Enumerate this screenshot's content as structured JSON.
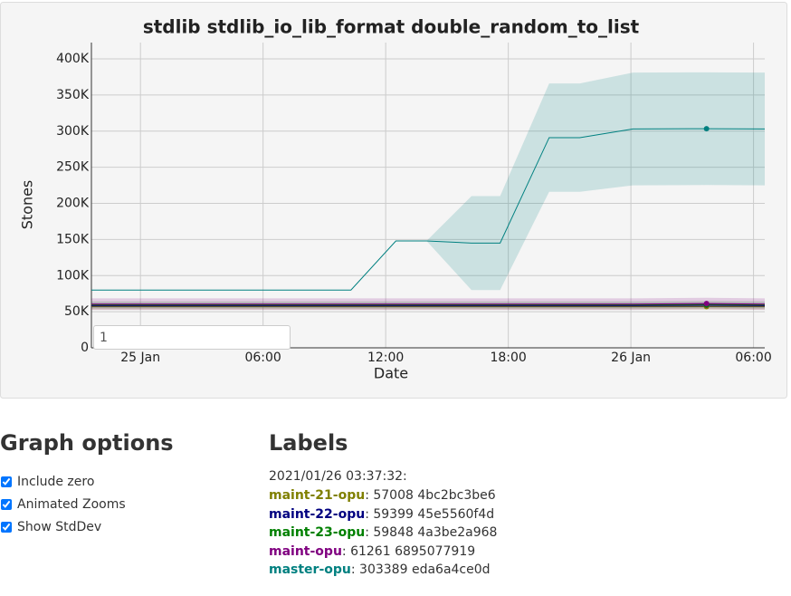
{
  "chart_data": {
    "type": "line",
    "title": "stdlib stdlib_io_lib_format double_random_to_list",
    "x_label": "Date",
    "y_label": "Stones",
    "x": [
      -2.4,
      10.3,
      12.5,
      14.0,
      16.2,
      17.6,
      20.0,
      21.5,
      24.1,
      27.7,
      30.55
    ],
    "xlim": [
      -2.4,
      30.55
    ],
    "xticks": [
      {
        "value": 0,
        "label": "25 Jan"
      },
      {
        "value": 6,
        "label": "06:00"
      },
      {
        "value": 12,
        "label": "12:00"
      },
      {
        "value": 18,
        "label": "18:00"
      },
      {
        "value": 24,
        "label": "26 Jan"
      },
      {
        "value": 30,
        "label": "06:00"
      }
    ],
    "ylim": [
      0,
      422600
    ],
    "yticks": [
      0,
      {
        "value": 50000,
        "label": "50K"
      },
      {
        "value": 100000,
        "label": "100K"
      },
      {
        "value": 150000,
        "label": "150K"
      },
      {
        "value": 200000,
        "label": "200K"
      },
      {
        "value": 250000,
        "label": "250K"
      },
      {
        "value": 300000,
        "label": "300K"
      },
      {
        "value": 350000,
        "label": "350K"
      },
      {
        "value": 400000,
        "label": "400K"
      }
    ],
    "grid": true,
    "selected_index": 9,
    "series": [
      {
        "name": "maint-21-opu",
        "color": "#808000",
        "values": [
          57000,
          57000,
          57000,
          57000,
          57000,
          57000,
          57000,
          57000,
          57000,
          57008,
          57000
        ],
        "std": [
          4000,
          4000,
          4000,
          4000,
          4000,
          4000,
          4000,
          4000,
          4000,
          4000,
          4000
        ]
      },
      {
        "name": "maint-22-opu",
        "color": "#000080",
        "values": [
          59000,
          59000,
          59000,
          59000,
          59000,
          59000,
          59000,
          59000,
          59000,
          59399,
          59000
        ],
        "std": [
          3000,
          3000,
          3000,
          3000,
          3000,
          3000,
          3000,
          3000,
          3000,
          3000,
          3000
        ]
      },
      {
        "name": "maint-23-opu",
        "color": "#008000",
        "values": [
          59500,
          59500,
          59500,
          59500,
          59500,
          59500,
          59500,
          59500,
          59500,
          59848,
          59500
        ],
        "std": [
          5000,
          5000,
          5000,
          5000,
          5000,
          5000,
          5000,
          5000,
          5000,
          5000,
          5000
        ]
      },
      {
        "name": "maint-opu",
        "color": "#800080",
        "values": [
          60500,
          60500,
          60500,
          60500,
          60500,
          60500,
          60500,
          60500,
          60500,
          61261,
          60500
        ],
        "std": [
          8000,
          8000,
          8000,
          8000,
          8000,
          8000,
          8000,
          8000,
          8000,
          8000,
          8000
        ]
      },
      {
        "name": "master-opu",
        "color": "#008080",
        "values": [
          80000,
          80000,
          148000,
          148000,
          145000,
          145000,
          291000,
          291000,
          303000,
          303389,
          303000
        ],
        "std": [
          0,
          0,
          0,
          0,
          65000,
          65000,
          75000,
          75000,
          78000,
          78000,
          78000
        ]
      }
    ]
  },
  "roller": "1",
  "options": {
    "title": "Graph options",
    "items": [
      {
        "label": "Include zero",
        "checked": true
      },
      {
        "label": "Animated Zooms",
        "checked": true
      },
      {
        "label": "Show StdDev",
        "checked": true
      }
    ]
  },
  "labels": {
    "title": "Labels",
    "timestamp": "2021/01/26 03:37:32:",
    "items": [
      {
        "name": "maint-21-opu",
        "rest": ": 57008 4bc2bc3be6"
      },
      {
        "name": "maint-22-opu",
        "rest": ": 59399 45e5560f4d"
      },
      {
        "name": "maint-23-opu",
        "rest": ": 59848 4a3be2a968"
      },
      {
        "name": "maint-opu",
        "rest": ": 61261 6895077919"
      },
      {
        "name": "master-opu",
        "rest": ": 303389 eda6a4ce0d"
      }
    ]
  }
}
